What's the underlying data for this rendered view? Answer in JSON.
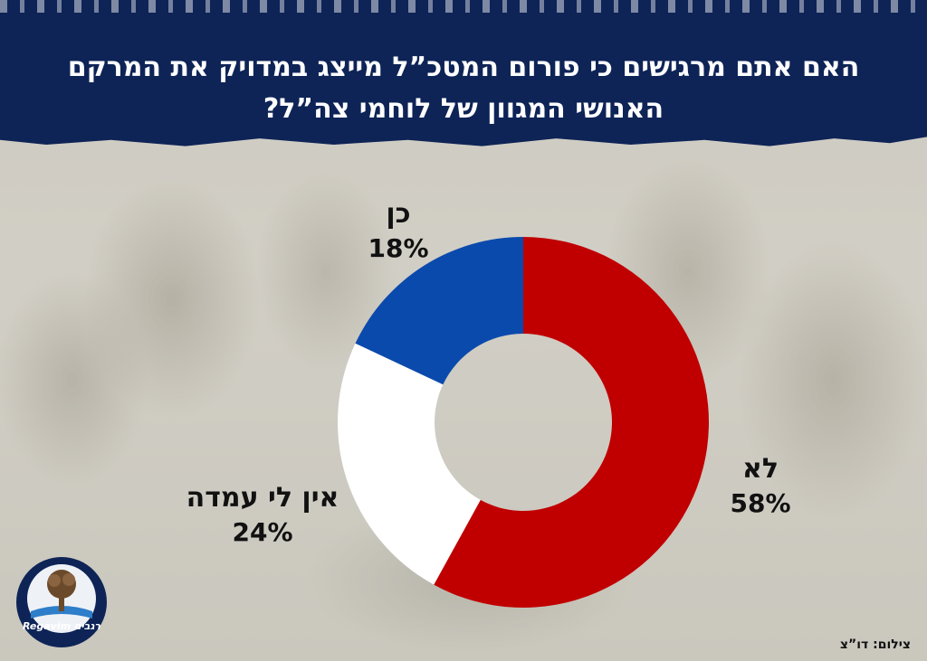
{
  "title": "האם אתם מרגישים כי פורום המטכ”ל מייצג במדויק את המרקם האנושי המגוון של לוחמי צה”ל?",
  "chart_data": {
    "type": "pie",
    "donut": true,
    "slices": [
      {
        "label": "לא",
        "value": 58,
        "value_text": "58%",
        "color": "#c00000"
      },
      {
        "label": "אין לי עמדה",
        "value": 24,
        "value_text": "24%",
        "color": "#ffffff"
      },
      {
        "label": "כן",
        "value": 18,
        "value_text": "18%",
        "color": "#0b4aad"
      }
    ]
  },
  "credit": "צילום: דו”צ",
  "logo": {
    "text": "Regavim רגבים",
    "colors": {
      "ring": "#0e2457",
      "tree": "#6b4a2b",
      "water": "#2e7ec9"
    }
  }
}
